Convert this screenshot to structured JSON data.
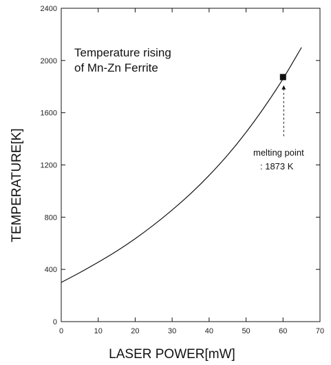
{
  "chart_data": {
    "type": "line",
    "title": "",
    "xlabel": "LASER POWER[mW]",
    "ylabel": "TEMPERATURE[K]",
    "xlim": [
      0,
      70
    ],
    "ylim": [
      0,
      2400
    ],
    "x_ticks": [
      0,
      10,
      20,
      30,
      40,
      50,
      60,
      70
    ],
    "y_ticks": [
      0,
      400,
      800,
      1200,
      1600,
      2000,
      2400
    ],
    "x_tick_labels": [
      "0",
      "10",
      "20",
      "30",
      "40",
      "50",
      "60",
      "70"
    ],
    "y_tick_labels": [
      "0",
      "400",
      "800",
      "1200",
      "1600",
      "2000",
      "2400"
    ],
    "grid": false,
    "legend": "none",
    "series": [
      {
        "x": [
          0,
          5,
          10,
          15,
          20,
          25,
          30,
          35,
          40,
          45,
          50,
          55,
          60,
          65
        ],
        "y": [
          300,
          375,
          455,
          540,
          635,
          740,
          855,
          980,
          1120,
          1275,
          1450,
          1645,
          1860,
          2100
        ]
      }
    ],
    "marker_point": {
      "x": 60,
      "y": 1873
    },
    "annotations": {
      "inset_line1": "Temperature rising",
      "inset_line2": "of Mn-Zn Ferrite",
      "melting_line1": "melting point",
      "melting_line2": ": 1873 K"
    },
    "colors": {
      "line": "#111111",
      "axis": "#111111",
      "marker": "#111111"
    }
  }
}
